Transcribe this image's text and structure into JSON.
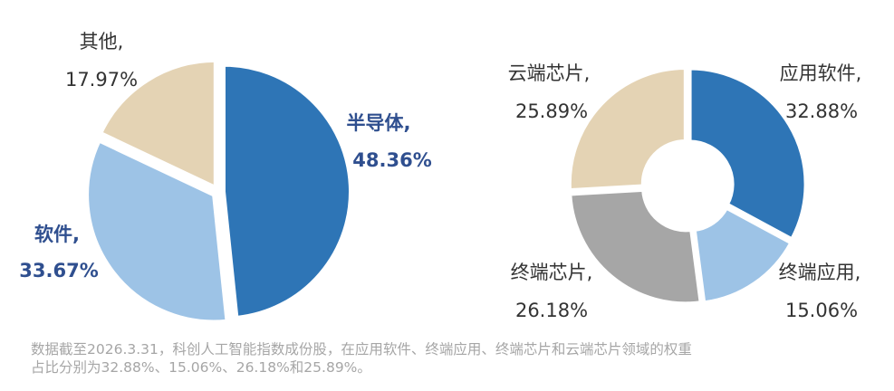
{
  "chart_data": [
    {
      "type": "pie",
      "slices": [
        {
          "name": "半导体,",
          "value": 48.36,
          "label": "48.36%",
          "color": "#2e75b6",
          "highlight": true
        },
        {
          "name": "软件,",
          "value": 33.67,
          "label": "33.67%",
          "color": "#9dc3e6",
          "highlight": true
        },
        {
          "name": "其他,",
          "value": 17.97,
          "label": "17.97%",
          "color": "#e4d3b4",
          "highlight": false
        }
      ]
    },
    {
      "type": "donut",
      "slices": [
        {
          "name": "应用软件,",
          "value": 32.88,
          "label": "32.88%",
          "color": "#2e75b6"
        },
        {
          "name": "终端应用,",
          "value": 15.06,
          "label": "15.06%",
          "color": "#9dc3e6"
        },
        {
          "name": "终端芯片,",
          "value": 26.18,
          "label": "26.18%",
          "color": "#a6a6a6"
        },
        {
          "name": "云端芯片,",
          "value": 25.89,
          "label": "25.89%",
          "color": "#e4d3b4"
        }
      ]
    }
  ],
  "footnote": {
    "line1": "数据截至2026.3.31，科创人工智能指数成份股，在应用软件、终端应用、终端芯片和云端芯片领域的权重",
    "line2": "占比分别为32.88%、15.06%、26.18%和25.89%。"
  }
}
